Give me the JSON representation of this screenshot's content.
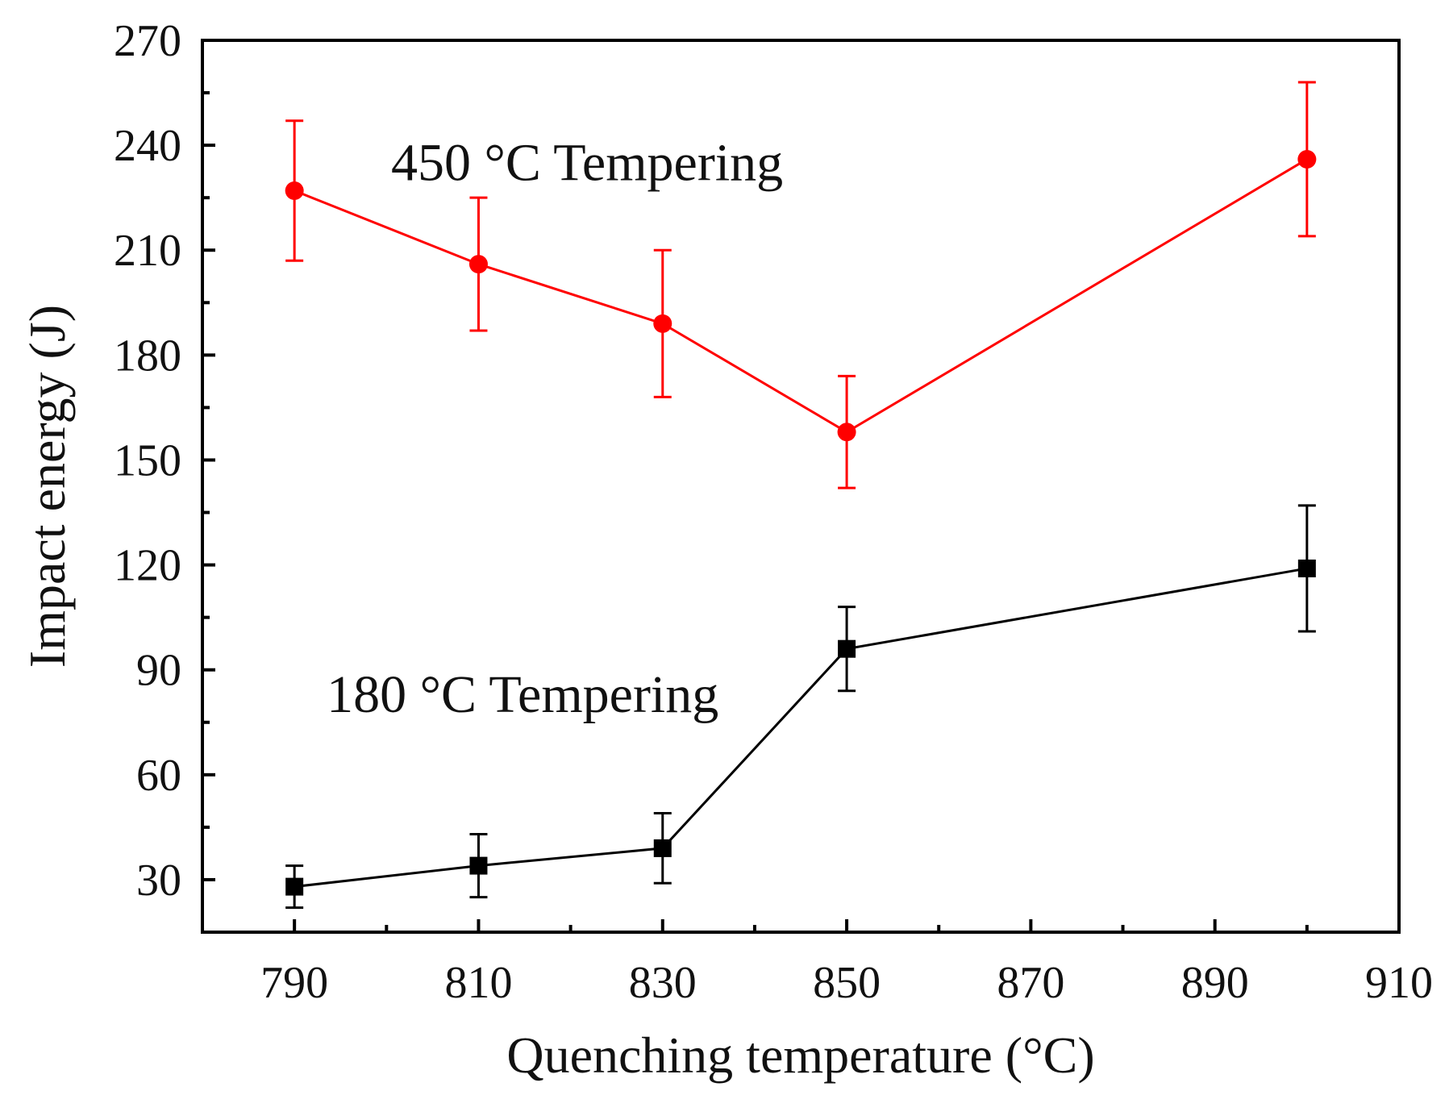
{
  "chart_data": {
    "type": "line",
    "xlabel": "Quenching temperature (°C)",
    "ylabel": "Impact energy (J)",
    "xlim": [
      780,
      910
    ],
    "ylim": [
      15,
      270
    ],
    "xticks": [
      790,
      810,
      830,
      850,
      870,
      890,
      910
    ],
    "yticks": [
      30,
      60,
      90,
      120,
      150,
      180,
      210,
      240,
      270
    ],
    "series": [
      {
        "name": "450 °C Tempering",
        "color": "#ff0000",
        "marker": "circle",
        "x": [
          790,
          810,
          830,
          850,
          900
        ],
        "y": [
          227,
          206,
          189,
          158,
          236
        ],
        "err_low": [
          207,
          187,
          168,
          142,
          214
        ],
        "err_high": [
          247,
          225,
          210,
          174,
          258
        ]
      },
      {
        "name": "180 °C Tempering",
        "color": "#000000",
        "marker": "square",
        "x": [
          790,
          810,
          830,
          850,
          900
        ],
        "y": [
          28,
          34,
          39,
          96,
          119
        ],
        "err_low": [
          22,
          25,
          29,
          84,
          101
        ],
        "err_high": [
          34,
          43,
          49,
          108,
          137
        ]
      }
    ],
    "annotations": [
      {
        "text": "450 °C Tempering",
        "x": 800.5,
        "y": 230
      },
      {
        "text": "180 °C Tempering",
        "x": 793.5,
        "y": 78
      }
    ]
  }
}
